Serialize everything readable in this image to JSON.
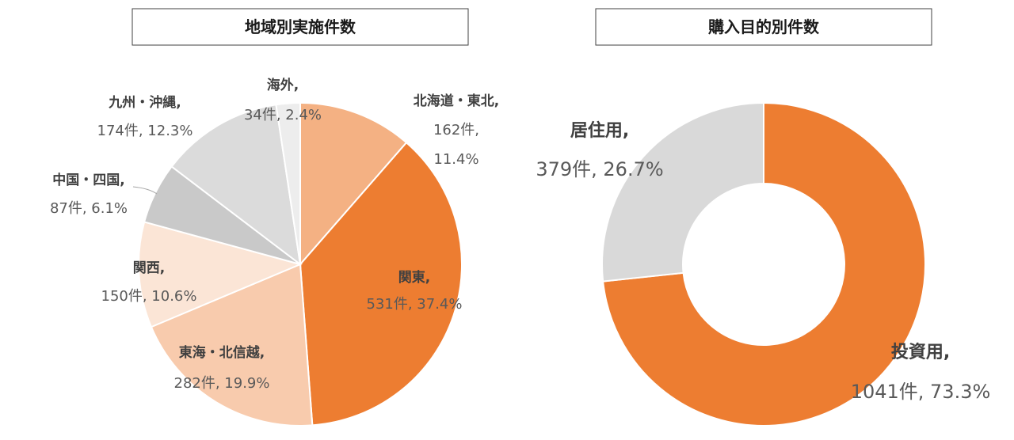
{
  "chart_data": [
    {
      "type": "pie",
      "title": "地域別実施件数",
      "slices": [
        {
          "label": "北海道・東北",
          "count": "162件",
          "percent": "11.4%",
          "value": 162,
          "color": "#F4B183"
        },
        {
          "label": "関東",
          "count": "531件",
          "percent": "37.4%",
          "value": 531,
          "color": "#ED7D31"
        },
        {
          "label": "東海・北信越",
          "count": "282件",
          "percent": "19.9%",
          "value": 282,
          "color": "#F8CBAD"
        },
        {
          "label": "関西",
          "count": "150件",
          "percent": "10.6%",
          "value": 150,
          "color": "#FBE5D6"
        },
        {
          "label": "中国・四国",
          "count": "87件",
          "percent": "6.1%",
          "value": 87,
          "color": "#C9C9C9"
        },
        {
          "label": "九州・沖縄",
          "count": "174件",
          "percent": "12.3%",
          "value": 174,
          "color": "#DBDBDB"
        },
        {
          "label": "海外",
          "count": "34件",
          "percent": "2.4%",
          "value": 34,
          "color": "#EDEDED"
        }
      ]
    },
    {
      "type": "donut",
      "title": "購入目的別件数",
      "slices": [
        {
          "label": "投資用",
          "count": "1041件",
          "percent": "73.3%",
          "value": 1041,
          "color": "#ED7D31"
        },
        {
          "label": "居住用",
          "count": "379件",
          "percent": "26.7%",
          "value": 379,
          "color": "#D9D9D9"
        }
      ]
    }
  ]
}
